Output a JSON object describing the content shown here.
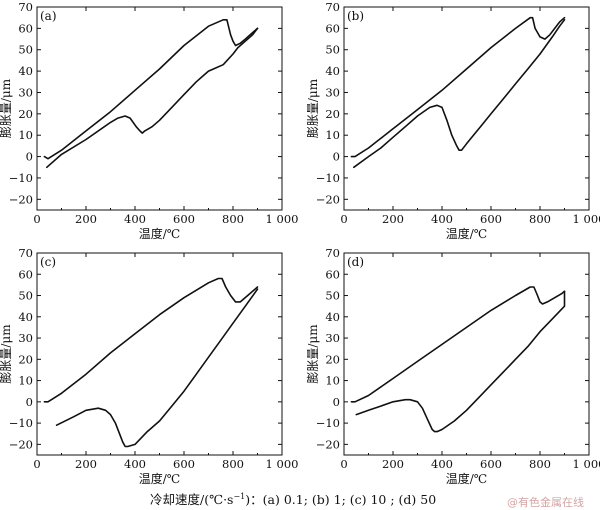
{
  "caption": {
    "prefix": "冷却速度/(℃·s",
    "exp": "−1",
    "suffix": ")：(a) 0.1; (b) 1; (c) 10 ; (d) 50"
  },
  "watermark": "@有色金属在线",
  "chart_data": [
    {
      "type": "line",
      "panel_label": "(a)",
      "xlabel": "温度/℃",
      "ylabel": "膨胀量/μm",
      "xlim": [
        0,
        1000
      ],
      "ylim": [
        -25,
        70
      ],
      "xticks": [
        0,
        200,
        400,
        600,
        800,
        1000
      ],
      "xtick_labels": [
        "0",
        "200",
        "400",
        "600",
        "800",
        "1 000"
      ],
      "yticks": [
        -20,
        -10,
        0,
        10,
        20,
        30,
        40,
        50,
        60,
        70
      ],
      "grid": false,
      "series": [
        {
          "x": [
            30,
            45,
            100,
            200,
            300,
            400,
            500,
            600,
            700,
            760,
            775,
            790,
            800,
            810,
            830,
            850,
            880,
            900
          ],
          "y": [
            0,
            -1,
            3,
            12,
            21,
            31,
            41,
            52,
            61,
            64,
            64,
            57,
            54,
            52,
            53,
            55,
            58,
            60
          ]
        },
        {
          "x": [
            900,
            880,
            850,
            820,
            800,
            760,
            720,
            700,
            680,
            650,
            600,
            550,
            500,
            470,
            440,
            430,
            420,
            405,
            380,
            360,
            330,
            300,
            200,
            100,
            40
          ],
          "y": [
            60,
            57,
            54,
            51,
            48,
            43,
            41,
            40,
            38,
            35,
            29,
            23,
            17,
            14,
            12,
            11,
            12,
            14,
            18,
            19,
            18,
            16,
            8,
            1,
            -5
          ]
        }
      ]
    },
    {
      "type": "line",
      "panel_label": "(b)",
      "xlabel": "温度/℃",
      "ylabel": "膨胀量/μm",
      "xlim": [
        0,
        1000
      ],
      "ylim": [
        -25,
        70
      ],
      "xticks": [
        0,
        200,
        400,
        600,
        800,
        1000
      ],
      "xtick_labels": [
        "0",
        "200",
        "400",
        "600",
        "800",
        "1 000"
      ],
      "yticks": [
        -20,
        -10,
        0,
        10,
        20,
        30,
        40,
        50,
        60,
        70
      ],
      "grid": false,
      "series": [
        {
          "x": [
            30,
            45,
            100,
            200,
            300,
            400,
            500,
            600,
            700,
            760,
            770,
            780,
            800,
            820,
            840,
            860,
            880,
            900
          ],
          "y": [
            0,
            0,
            4,
            13,
            22,
            31,
            41,
            51,
            60,
            65,
            65,
            60,
            56,
            55,
            57,
            60,
            63,
            65
          ]
        },
        {
          "x": [
            900,
            880,
            850,
            800,
            750,
            700,
            650,
            600,
            550,
            500,
            480,
            470,
            460,
            440,
            420,
            400,
            380,
            350,
            300,
            250,
            200,
            150,
            100,
            40
          ],
          "y": [
            64,
            61,
            56,
            48,
            41,
            34,
            27,
            20,
            13,
            6,
            3,
            3,
            5,
            10,
            17,
            23,
            24,
            23,
            19,
            14,
            9,
            4,
            0,
            -5
          ]
        }
      ]
    },
    {
      "type": "line",
      "panel_label": "(c)",
      "xlabel": "温度/℃",
      "ylabel": "膨胀量/μm",
      "xlim": [
        0,
        1000
      ],
      "ylim": [
        -25,
        70
      ],
      "xticks": [
        0,
        200,
        400,
        600,
        800,
        1000
      ],
      "xtick_labels": [
        "0",
        "200",
        "400",
        "600",
        "800",
        "1 000"
      ],
      "yticks": [
        -20,
        -10,
        0,
        10,
        20,
        30,
        40,
        50,
        60,
        70
      ],
      "grid": false,
      "series": [
        {
          "x": [
            30,
            45,
            100,
            200,
            300,
            400,
            500,
            600,
            700,
            740,
            755,
            770,
            790,
            810,
            830,
            860,
            900
          ],
          "y": [
            0,
            0,
            4,
            13,
            23,
            32,
            41,
            49,
            56,
            58,
            58,
            54,
            50,
            47,
            47,
            50,
            54
          ]
        },
        {
          "x": [
            900,
            850,
            800,
            750,
            700,
            650,
            600,
            550,
            500,
            450,
            400,
            370,
            360,
            350,
            320,
            300,
            280,
            250,
            200,
            150,
            80
          ],
          "y": [
            53,
            45,
            37,
            29,
            21,
            13,
            5,
            -2,
            -9,
            -14,
            -20,
            -21,
            -21,
            -19,
            -10,
            -6,
            -4,
            -3,
            -4,
            -7,
            -11
          ]
        }
      ]
    },
    {
      "type": "line",
      "panel_label": "(d)",
      "xlabel": "温度/℃",
      "ylabel": "膨胀量/μm",
      "xlim": [
        0,
        1000
      ],
      "ylim": [
        -25,
        70
      ],
      "xticks": [
        0,
        200,
        400,
        600,
        800,
        1000
      ],
      "xtick_labels": [
        "0",
        "200",
        "400",
        "600",
        "800",
        "1 000"
      ],
      "yticks": [
        -20,
        -10,
        0,
        10,
        20,
        30,
        40,
        50,
        60,
        70
      ],
      "grid": false,
      "series": [
        {
          "x": [
            30,
            45,
            100,
            200,
            300,
            400,
            500,
            600,
            700,
            760,
            775,
            790,
            800,
            810,
            830,
            860,
            890,
            900
          ],
          "y": [
            0,
            0,
            3,
            11,
            19,
            27,
            35,
            43,
            50,
            54,
            54,
            50,
            47,
            46,
            47,
            49,
            51,
            52
          ]
        },
        {
          "x": [
            900,
            900,
            850,
            800,
            750,
            700,
            650,
            600,
            550,
            500,
            450,
            400,
            380,
            370,
            360,
            340,
            320,
            300,
            270,
            250,
            200,
            150,
            100,
            50
          ],
          "y": [
            52,
            45,
            39,
            33,
            26,
            20,
            14,
            8,
            2,
            -4,
            -9,
            -13,
            -14,
            -14,
            -13,
            -8,
            -3,
            0,
            1,
            1,
            0,
            -2,
            -4,
            -6
          ]
        }
      ]
    }
  ]
}
